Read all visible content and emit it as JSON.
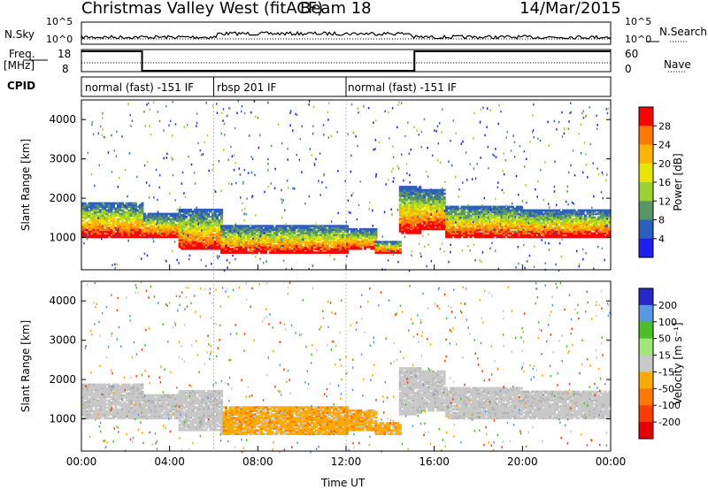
{
  "header": {
    "station": "Christmas Valley West (fitACF)",
    "beam": "Beam 18",
    "date": "14/Mar/2015"
  },
  "strip_labels": {
    "nsky": "N.Sky",
    "nsky_ticks": [
      "10^5",
      "10^0"
    ],
    "nsearch": "N.Search",
    "nsearch_ticks": [
      "10^5",
      "10^0"
    ],
    "freq": "Freq.",
    "freq_unit": "[MHz]",
    "freq_ticks": [
      "18",
      "8"
    ],
    "nave": "Nave",
    "nave_ticks": [
      "60",
      "0"
    ],
    "cpid": "CPID"
  },
  "cpid_modes": [
    {
      "label": "normal (fast) -151 IF",
      "start_hour": 0,
      "end_hour": 6
    },
    {
      "label": "rbsp 201 IF",
      "start_hour": 6,
      "end_hour": 12
    },
    {
      "label": "normal (fast) -151 IF",
      "start_hour": 12,
      "end_hour": 24
    }
  ],
  "chart_data": {
    "type": "heatmap",
    "x_label": "Time UT",
    "x_ticks": [
      "00:00",
      "04:00",
      "08:00",
      "12:00",
      "16:00",
      "20:00",
      "00:00"
    ],
    "x_range_hours": [
      0,
      24
    ],
    "frequency_mhz": [
      {
        "start_hour": 0,
        "end_hour": 2.75,
        "value": 18
      },
      {
        "start_hour": 2.75,
        "end_hour": 15.1,
        "value": 8
      },
      {
        "start_hour": 15.1,
        "end_hour": 24,
        "value": 18
      }
    ],
    "panels": [
      {
        "name": "power",
        "ylabel": "Slant Range [km]",
        "yrange_km": [
          180,
          4500
        ],
        "yticks": [
          "1000",
          "2000",
          "3000",
          "4000"
        ],
        "colorbar_label": "Power [dB]",
        "colorbar_ticks": [
          "28",
          "24",
          "20",
          "16",
          "12",
          "8",
          "4"
        ],
        "colorbar_colors": [
          "#ff0000",
          "#ff7800",
          "#ffb400",
          "#e6e600",
          "#9bd232",
          "#5a9664",
          "#2d5fbe",
          "#1e1ef0"
        ]
      },
      {
        "name": "velocity",
        "ylabel": "Slant Range [km]",
        "yrange_km": [
          180,
          4500
        ],
        "yticks": [
          "1000",
          "2000",
          "3000",
          "4000"
        ],
        "colorbar_label": "Velocity [m s⁻¹]",
        "colorbar_ticks": [
          "200",
          "100",
          "50",
          "15",
          "-15",
          "-50",
          "-100",
          "-200"
        ],
        "colorbar_colors": [
          "#2828c8",
          "#5a96e6",
          "#4bbe28",
          "#a0e678",
          "#c8c8c8",
          "#ffaa00",
          "#ff7800",
          "#ff3c00",
          "#e60000"
        ]
      }
    ]
  }
}
